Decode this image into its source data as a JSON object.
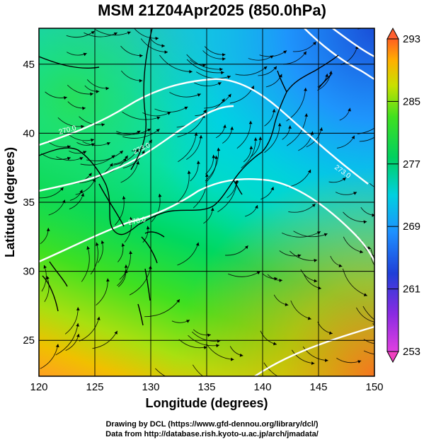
{
  "title": "MSM 21Z04Apr2025 (850.0hPa)",
  "credits": [
    "Drawing by DCL (https://www.gfd-dennou.org/library/dcl/)",
    "Data from http://database.rish.kyoto-u.ac.jp/arch/jmadata/"
  ],
  "chart_data": {
    "type": "heatmap",
    "title": "MSM 21Z04Apr2025 (850.0hPa)",
    "xlabel": "Longitude (degrees)",
    "ylabel": "Latitude  (degrees)",
    "xlim": [
      120,
      150
    ],
    "ylim": [
      22.4,
      47.6
    ],
    "x_ticks": [
      120,
      125,
      130,
      135,
      140,
      145,
      150
    ],
    "y_ticks": [
      25,
      30,
      35,
      40,
      45
    ],
    "grid": true,
    "colorbar": {
      "range": [
        253,
        293
      ],
      "tick_labels": [
        253,
        261,
        269,
        277,
        285,
        293
      ],
      "colors": [
        "#e040e0",
        "#8a2be2",
        "#1f3fd8",
        "#1e90ff",
        "#00d0e0",
        "#00d060",
        "#40e020",
        "#c8e000",
        "#ffb000",
        "#ff6020"
      ]
    },
    "contour_labels": [
      "270.0",
      "273.0",
      "270.0",
      "273.0"
    ]
  }
}
